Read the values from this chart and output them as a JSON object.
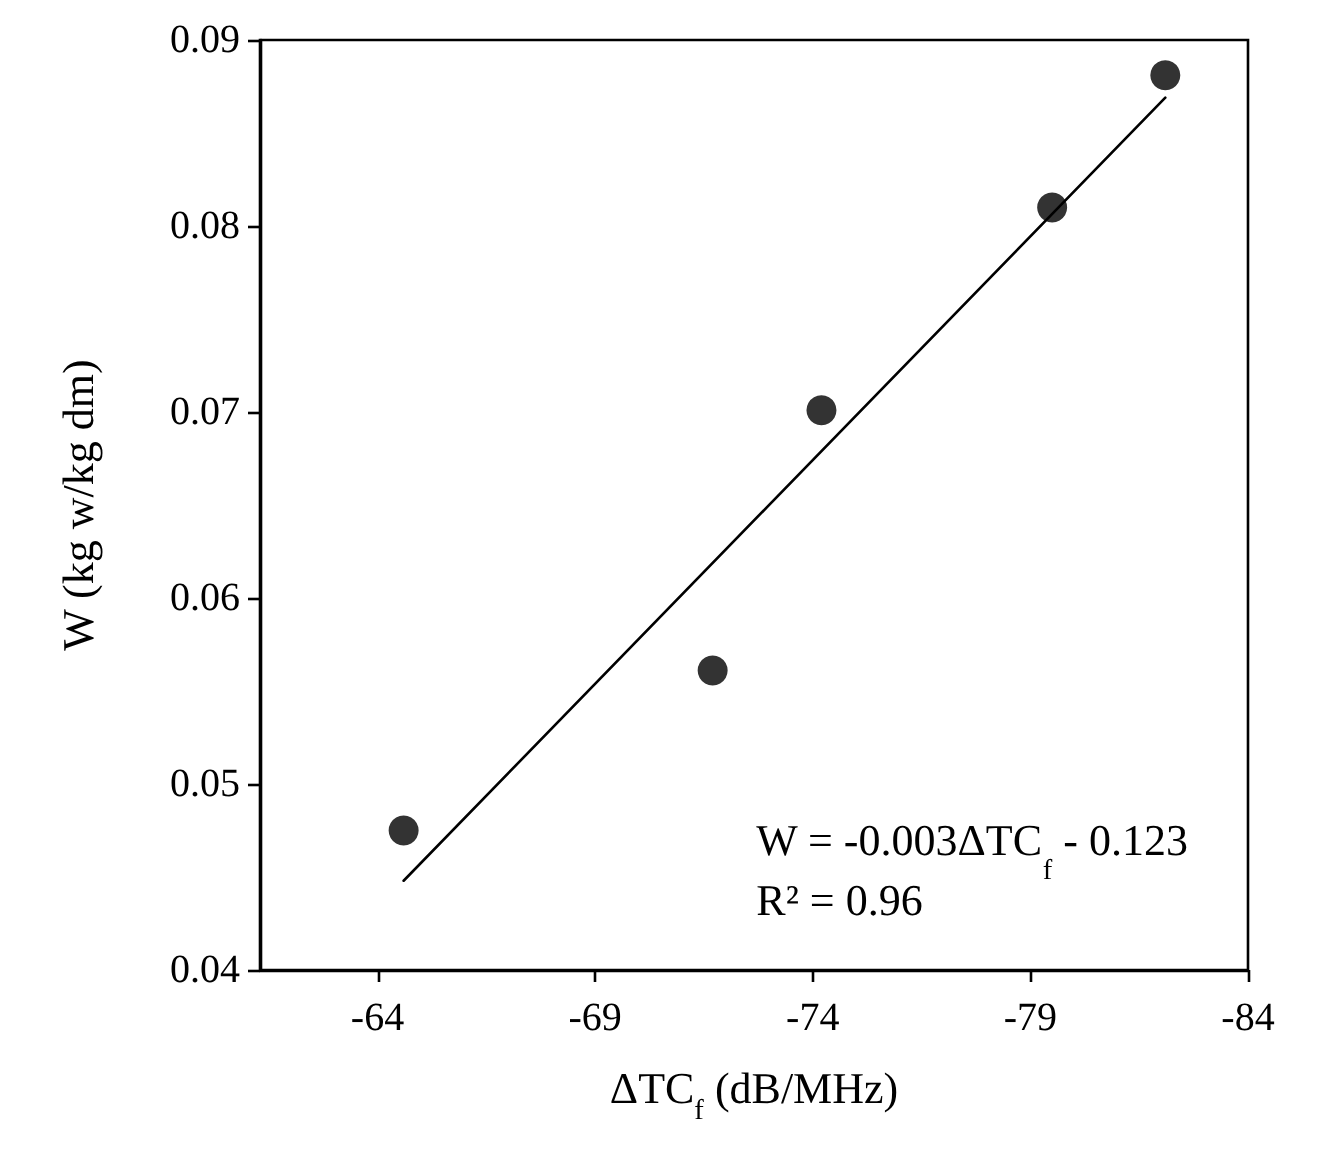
{
  "chart_data": {
    "type": "scatter",
    "xlabel": "ΔTC$_{f}$ (dB/MHz)",
    "ylabel": "W (kg w/kg dm)",
    "xlim": [
      -61.3,
      -84
    ],
    "xticks": [
      -64,
      -69,
      -74,
      -79,
      -84
    ],
    "ylim": [
      0.04,
      0.09
    ],
    "yticks": [
      0.04,
      0.05,
      0.06,
      0.07,
      0.08,
      0.09
    ],
    "marker": "circle",
    "grid": false,
    "series": [
      {
        "color": "#000000",
        "x": [
          -64.6,
          -71.7,
          -74.2,
          -79.5,
          -82.1
        ],
        "values": [
          0.0475,
          0.0561,
          0.0701,
          0.081,
          0.0881
        ]
      },
      {
        "type": "line",
        "color": "#000000",
        "marker": "none",
        "x": [
          -64.6,
          -82.1
        ],
        "values": [
          0.0448,
          0.0869
        ]
      }
    ],
    "annotations": [
      "W = -0.003ΔTC$_{f}$ - 0.123",
      "R² = 0.96"
    ]
  }
}
